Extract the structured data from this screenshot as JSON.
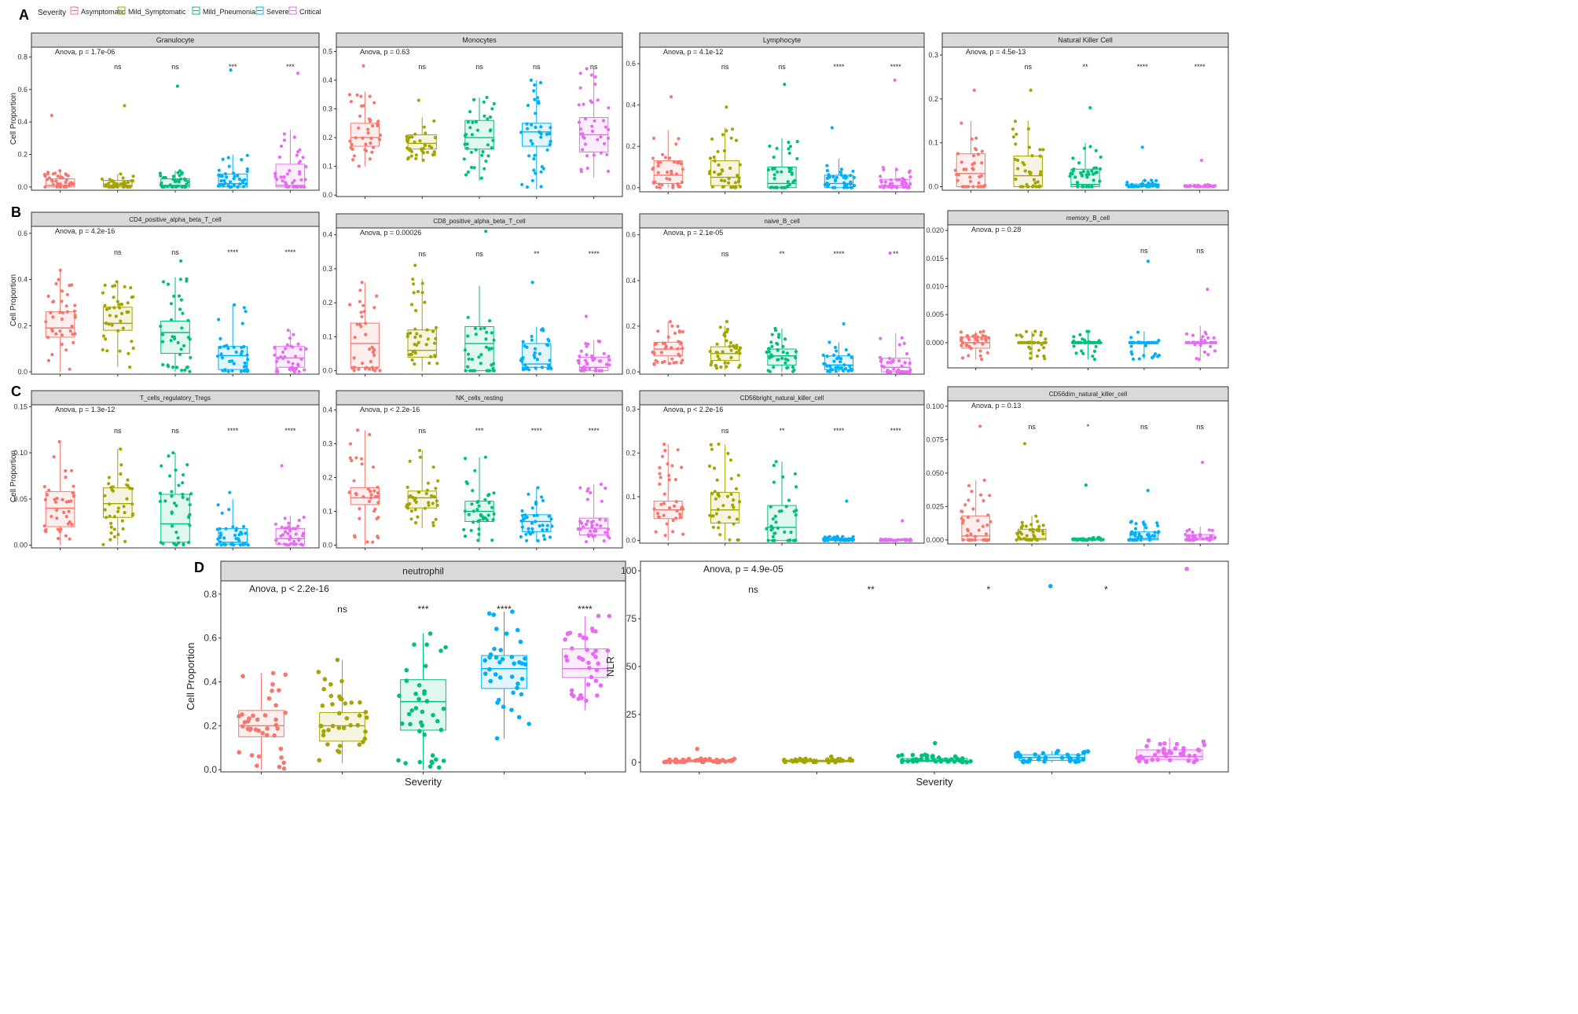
{
  "legend": {
    "title": "Severity",
    "items": [
      {
        "label": "Asymptomatic",
        "color": "#F8766D"
      },
      {
        "label": "Mild_Symptomatic",
        "color": "#A3A500"
      },
      {
        "label": "Mild_Pneumonia",
        "color": "#00BF7D"
      },
      {
        "label": "Severe",
        "color": "#00B0F6"
      },
      {
        "label": "Critical",
        "color": "#E76BF3"
      }
    ]
  },
  "panel_letters": [
    "A",
    "B",
    "C",
    "D"
  ],
  "xlabel": "Severity",
  "chart_data": [
    {
      "type": "box",
      "panel": "A",
      "strip": "Granulocyte",
      "ylabel": "Cell Proportion",
      "ylim": [
        -0.02,
        0.86
      ],
      "yticks": [
        0.0,
        0.2,
        0.4,
        0.6,
        0.8
      ],
      "tickfmt": "1",
      "anova": "Anova, p = 1.7e-06",
      "sig": [
        "",
        "ns",
        "ns",
        "***",
        "***"
      ],
      "boxes": [
        {
          "q1": 0.0,
          "med": 0.01,
          "q3": 0.05,
          "lo": 0.0,
          "hi": 0.1,
          "max": 0.44
        },
        {
          "q1": 0.0,
          "med": 0.01,
          "q3": 0.04,
          "lo": 0.0,
          "hi": 0.08,
          "max": 0.5
        },
        {
          "q1": 0.0,
          "med": 0.01,
          "q3": 0.05,
          "lo": 0.0,
          "hi": 0.1,
          "max": 0.62
        },
        {
          "q1": 0.0,
          "med": 0.02,
          "q3": 0.08,
          "lo": 0.0,
          "hi": 0.2,
          "max": 0.72
        },
        {
          "q1": 0.0,
          "med": 0.01,
          "q3": 0.14,
          "lo": 0.0,
          "hi": 0.35,
          "max": 0.7
        }
      ]
    },
    {
      "type": "box",
      "panel": "A",
      "strip": "Monocytes",
      "ylabel": "",
      "ylim": [
        -0.005,
        0.515
      ],
      "yticks": [
        0.0,
        0.1,
        0.2,
        0.3,
        0.4,
        0.5
      ],
      "tickfmt": "1",
      "anova": "Anova, p = 0.63",
      "sig": [
        "",
        "ns",
        "ns",
        "ns",
        "ns"
      ],
      "boxes": [
        {
          "q1": 0.17,
          "med": 0.2,
          "q3": 0.25,
          "lo": 0.1,
          "hi": 0.36,
          "max": 0.45
        },
        {
          "q1": 0.16,
          "med": 0.18,
          "q3": 0.21,
          "lo": 0.12,
          "hi": 0.27,
          "max": 0.33
        },
        {
          "q1": 0.16,
          "med": 0.2,
          "q3": 0.26,
          "lo": 0.05,
          "hi": 0.34,
          "max": 0.34
        },
        {
          "q1": 0.17,
          "med": 0.22,
          "q3": 0.25,
          "lo": 0.02,
          "hi": 0.4,
          "max": 0.4
        },
        {
          "q1": 0.15,
          "med": 0.21,
          "q3": 0.27,
          "lo": 0.06,
          "hi": 0.44,
          "max": 0.44
        }
      ]
    },
    {
      "type": "box",
      "panel": "A",
      "strip": "Lymphocyte",
      "ylabel": "",
      "ylim": [
        -0.02,
        0.68
      ],
      "yticks": [
        0.0,
        0.2,
        0.4,
        0.6
      ],
      "tickfmt": "1",
      "anova": "Anova, p = 4.1e-12",
      "sig": [
        "",
        "ns",
        "ns",
        "****",
        "****"
      ],
      "boxes": [
        {
          "q1": 0.02,
          "med": 0.06,
          "q3": 0.13,
          "lo": 0.0,
          "hi": 0.28,
          "max": 0.44
        },
        {
          "q1": 0.01,
          "med": 0.05,
          "q3": 0.13,
          "lo": 0.0,
          "hi": 0.29,
          "max": 0.39
        },
        {
          "q1": 0.0,
          "med": 0.02,
          "q3": 0.1,
          "lo": 0.0,
          "hi": 0.24,
          "max": 0.5
        },
        {
          "q1": 0.0,
          "med": 0.02,
          "q3": 0.06,
          "lo": 0.0,
          "hi": 0.14,
          "max": 0.29
        },
        {
          "q1": 0.0,
          "med": 0.01,
          "q3": 0.04,
          "lo": 0.0,
          "hi": 0.1,
          "max": 0.52
        }
      ]
    },
    {
      "type": "box",
      "panel": "A",
      "strip": "Natural Killer Cell",
      "ylabel": "",
      "ylim": [
        -0.008,
        0.318
      ],
      "yticks": [
        0.0,
        0.1,
        0.2,
        0.3
      ],
      "tickfmt": "1",
      "anova": "Anova, p = 4.5e-13",
      "sig": [
        "",
        "ns",
        "**",
        "****",
        "****"
      ],
      "boxes": [
        {
          "q1": 0.0,
          "med": 0.03,
          "q3": 0.075,
          "lo": 0.0,
          "hi": 0.15,
          "max": 0.22
        },
        {
          "q1": 0.0,
          "med": 0.025,
          "q3": 0.07,
          "lo": 0.0,
          "hi": 0.15,
          "max": 0.22
        },
        {
          "q1": 0.0,
          "med": 0.005,
          "q3": 0.04,
          "lo": 0.0,
          "hi": 0.1,
          "max": 0.18
        },
        {
          "q1": 0.0,
          "med": 0.002,
          "q3": 0.006,
          "lo": 0.0,
          "hi": 0.015,
          "max": 0.09
        },
        {
          "q1": 0.0,
          "med": 0.001,
          "q3": 0.002,
          "lo": 0.0,
          "hi": 0.005,
          "max": 0.06
        }
      ]
    },
    {
      "type": "box",
      "panel": "B",
      "strip": "CD4_positive_alpha_beta_T_cell",
      "ylabel": "Cell Proportion",
      "ylim": [
        -0.01,
        0.63
      ],
      "yticks": [
        0.0,
        0.2,
        0.4,
        0.6
      ],
      "tickfmt": "1",
      "anova": "Anova, p = 4.2e-16",
      "sig": [
        "",
        "ns",
        "ns",
        "****",
        "****"
      ],
      "boxes": [
        {
          "q1": 0.15,
          "med": 0.19,
          "q3": 0.26,
          "lo": 0.0,
          "hi": 0.44,
          "max": 0.44
        },
        {
          "q1": 0.18,
          "med": 0.21,
          "q3": 0.28,
          "lo": 0.02,
          "hi": 0.39,
          "max": 0.39
        },
        {
          "q1": 0.08,
          "med": 0.17,
          "q3": 0.22,
          "lo": 0.0,
          "hi": 0.41,
          "max": 0.48
        },
        {
          "q1": 0.01,
          "med": 0.07,
          "q3": 0.11,
          "lo": 0.0,
          "hi": 0.29,
          "max": 0.29
        },
        {
          "q1": 0.02,
          "med": 0.06,
          "q3": 0.11,
          "lo": 0.0,
          "hi": 0.18,
          "max": 0.18
        }
      ]
    },
    {
      "type": "box",
      "panel": "B",
      "strip": "CD8_positive_alpha_beta_T_cell",
      "ylabel": "",
      "ylim": [
        -0.01,
        0.42
      ],
      "yticks": [
        0.0,
        0.1,
        0.2,
        0.3,
        0.4
      ],
      "tickfmt": "1",
      "anova": "Anova, p = 0.00026",
      "sig": [
        "",
        "ns",
        "ns",
        "**",
        "****"
      ],
      "boxes": [
        {
          "q1": 0.01,
          "med": 0.08,
          "q3": 0.14,
          "lo": 0.0,
          "hi": 0.26,
          "max": 0.26
        },
        {
          "q1": 0.04,
          "med": 0.06,
          "q3": 0.12,
          "lo": 0.0,
          "hi": 0.27,
          "max": 0.31
        },
        {
          "q1": 0.0,
          "med": 0.08,
          "q3": 0.13,
          "lo": 0.0,
          "hi": 0.25,
          "max": 0.41
        },
        {
          "q1": 0.01,
          "med": 0.02,
          "q3": 0.08,
          "lo": 0.0,
          "hi": 0.13,
          "max": 0.26
        },
        {
          "q1": 0.0,
          "med": 0.01,
          "q3": 0.04,
          "lo": 0.0,
          "hi": 0.09,
          "max": 0.16
        }
      ]
    },
    {
      "type": "box",
      "panel": "B",
      "strip": "naive_B_cell",
      "ylabel": "",
      "ylim": [
        -0.01,
        0.63
      ],
      "yticks": [
        0.0,
        0.2,
        0.4,
        0.6
      ],
      "tickfmt": "1",
      "anova": "Anova, p = 2.1e-05",
      "sig": [
        "",
        "ns",
        "**",
        "****",
        "**"
      ],
      "boxes": [
        {
          "q1": 0.07,
          "med": 0.1,
          "q3": 0.13,
          "lo": 0.03,
          "hi": 0.22,
          "max": 0.22
        },
        {
          "q1": 0.05,
          "med": 0.08,
          "q3": 0.11,
          "lo": 0.01,
          "hi": 0.2,
          "max": 0.22
        },
        {
          "q1": 0.03,
          "med": 0.07,
          "q3": 0.1,
          "lo": 0.0,
          "hi": 0.19,
          "max": 0.19
        },
        {
          "q1": 0.01,
          "med": 0.03,
          "q3": 0.07,
          "lo": 0.0,
          "hi": 0.13,
          "max": 0.21
        },
        {
          "q1": 0.0,
          "med": 0.02,
          "q3": 0.06,
          "lo": 0.0,
          "hi": 0.17,
          "max": 0.52
        }
      ]
    },
    {
      "type": "box",
      "panel": "B",
      "strip": "memory_B_cell",
      "ylabel": "",
      "ylim": [
        -0.0045,
        0.021
      ],
      "yticks": [
        0.0,
        0.005,
        0.01,
        0.015,
        0.02
      ],
      "tickfmt": "3",
      "anova": "Anova, p = 0.28",
      "sig": [
        "",
        "",
        "",
        "ns",
        "ns"
      ],
      "boxes": [
        {
          "q1": -0.001,
          "med": 0.0,
          "q3": 0.001,
          "lo": -0.003,
          "hi": 0.002,
          "max": 0.002
        },
        {
          "q1": 0.0,
          "med": 0.0,
          "q3": 0.0,
          "lo": -0.003,
          "hi": 0.002,
          "max": 0.002
        },
        {
          "q1": 0.0,
          "med": 0.0,
          "q3": 0.0,
          "lo": -0.003,
          "hi": 0.002,
          "max": 0.002
        },
        {
          "q1": 0.0,
          "med": 0.0,
          "q3": 0.0,
          "lo": -0.003,
          "hi": 0.002,
          "max": 0.0145
        },
        {
          "q1": 0.0,
          "med": 0.0,
          "q3": 0.0,
          "lo": -0.003,
          "hi": 0.003,
          "max": 0.0095
        }
      ]
    },
    {
      "type": "box",
      "panel": "C",
      "strip": "T_cells_regulatory_Tregs",
      "ylabel": "Cell Proportion",
      "ylim": [
        -0.003,
        0.152
      ],
      "yticks": [
        0.0,
        0.05,
        0.1,
        0.15
      ],
      "tickfmt": "2",
      "anova": "Anova, p = 1.3e-12",
      "sig": [
        "",
        "ns",
        "ns",
        "****",
        "****"
      ],
      "boxes": [
        {
          "q1": 0.02,
          "med": 0.04,
          "q3": 0.058,
          "lo": 0.0,
          "hi": 0.112,
          "max": 0.112
        },
        {
          "q1": 0.03,
          "med": 0.045,
          "q3": 0.062,
          "lo": 0.0,
          "hi": 0.104,
          "max": 0.104
        },
        {
          "q1": 0.003,
          "med": 0.023,
          "q3": 0.055,
          "lo": 0.0,
          "hi": 0.1,
          "max": 0.1
        },
        {
          "q1": 0.001,
          "med": 0.003,
          "q3": 0.018,
          "lo": 0.0,
          "hi": 0.05,
          "max": 0.057
        },
        {
          "q1": 0.001,
          "med": 0.007,
          "q3": 0.018,
          "lo": 0.0,
          "hi": 0.032,
          "max": 0.086
        }
      ]
    },
    {
      "type": "box",
      "panel": "C",
      "strip": "NK_cells_resting",
      "ylabel": "",
      "ylim": [
        -0.008,
        0.415
      ],
      "yticks": [
        0.0,
        0.1,
        0.2,
        0.3,
        0.4
      ],
      "tickfmt": "1",
      "anova": "Anova, p < 2.2e-16",
      "sig": [
        "",
        "ns",
        "***",
        "****",
        "****"
      ],
      "boxes": [
        {
          "q1": 0.12,
          "med": 0.14,
          "q3": 0.17,
          "lo": 0.0,
          "hi": 0.34,
          "max": 0.34
        },
        {
          "q1": 0.11,
          "med": 0.14,
          "q3": 0.16,
          "lo": 0.05,
          "hi": 0.28,
          "max": 0.28
        },
        {
          "q1": 0.07,
          "med": 0.1,
          "q3": 0.13,
          "lo": 0.01,
          "hi": 0.26,
          "max": 0.26
        },
        {
          "q1": 0.04,
          "med": 0.07,
          "q3": 0.09,
          "lo": 0.01,
          "hi": 0.17,
          "max": 0.17
        },
        {
          "q1": 0.03,
          "med": 0.05,
          "q3": 0.08,
          "lo": 0.01,
          "hi": 0.18,
          "max": 0.18
        }
      ]
    },
    {
      "type": "box",
      "panel": "C",
      "strip": "CD56bright_natural_killer_cell",
      "ylabel": "",
      "ylim": [
        -0.006,
        0.31
      ],
      "yticks": [
        0.0,
        0.1,
        0.2,
        0.3
      ],
      "tickfmt": "1",
      "anova": "Anova, p < 2.2e-16",
      "sig": [
        "",
        "ns",
        "**",
        "****",
        "****"
      ],
      "boxes": [
        {
          "q1": 0.05,
          "med": 0.07,
          "q3": 0.09,
          "lo": 0.0,
          "hi": 0.22,
          "max": 0.22
        },
        {
          "q1": 0.04,
          "med": 0.07,
          "q3": 0.11,
          "lo": 0.0,
          "hi": 0.22,
          "max": 0.22
        },
        {
          "q1": 0.0,
          "med": 0.03,
          "q3": 0.08,
          "lo": 0.0,
          "hi": 0.18,
          "max": 0.18
        },
        {
          "q1": 0.0,
          "med": 0.002,
          "q3": 0.004,
          "lo": 0.0,
          "hi": 0.01,
          "max": 0.09
        },
        {
          "q1": 0.0,
          "med": 0.001,
          "q3": 0.002,
          "lo": 0.0,
          "hi": 0.004,
          "max": 0.045
        }
      ]
    },
    {
      "type": "box",
      "panel": "C",
      "strip": "CD56dim_natural_killer_cell",
      "ylabel": "",
      "ylim": [
        -0.003,
        0.104
      ],
      "yticks": [
        0.0,
        0.025,
        0.05,
        0.075,
        0.1
      ],
      "tickfmt": "3",
      "anova": "Anova, p = 0.13",
      "sig": [
        "",
        "ns",
        "*",
        "ns",
        "ns"
      ],
      "boxes": [
        {
          "q1": 0.0,
          "med": 0.003,
          "q3": 0.018,
          "lo": 0.0,
          "hi": 0.045,
          "max": 0.085
        },
        {
          "q1": 0.0,
          "med": 0.001,
          "q3": 0.008,
          "lo": 0.0,
          "hi": 0.018,
          "max": 0.072
        },
        {
          "q1": 0.0,
          "med": 0.0,
          "q3": 0.001,
          "lo": 0.0,
          "hi": 0.002,
          "max": 0.041
        },
        {
          "q1": 0.0,
          "med": 0.001,
          "q3": 0.006,
          "lo": 0.0,
          "hi": 0.015,
          "max": 0.037
        },
        {
          "q1": 0.0,
          "med": 0.001,
          "q3": 0.004,
          "lo": 0.0,
          "hi": 0.01,
          "max": 0.058
        }
      ]
    },
    {
      "type": "box",
      "panel": "D",
      "strip": "neutrophil",
      "ylabel": "Cell Proportion",
      "xlabel": "Severity",
      "ylim": [
        -0.01,
        0.86
      ],
      "yticks": [
        0.0,
        0.2,
        0.4,
        0.6,
        0.8
      ],
      "tickfmt": "1",
      "anova": "Anova, p < 2.2e-16",
      "sig": [
        "",
        "ns",
        "***",
        "****",
        "****"
      ],
      "boxes": [
        {
          "q1": 0.15,
          "med": 0.2,
          "q3": 0.27,
          "lo": 0.0,
          "hi": 0.44,
          "max": 0.44
        },
        {
          "q1": 0.13,
          "med": 0.2,
          "q3": 0.26,
          "lo": 0.03,
          "hi": 0.5,
          "max": 0.5
        },
        {
          "q1": 0.18,
          "med": 0.31,
          "q3": 0.41,
          "lo": 0.0,
          "hi": 0.62,
          "max": 0.62
        },
        {
          "q1": 0.37,
          "med": 0.46,
          "q3": 0.52,
          "lo": 0.14,
          "hi": 0.72,
          "max": 0.72
        },
        {
          "q1": 0.42,
          "med": 0.46,
          "q3": 0.55,
          "lo": 0.27,
          "hi": 0.7,
          "max": 0.7
        }
      ]
    },
    {
      "type": "box",
      "panel": "D",
      "strip": "",
      "ylabel": "NLR",
      "xlabel": "Severity",
      "ylim": [
        -5,
        105
      ],
      "yticks": [
        0,
        25,
        50,
        75,
        100
      ],
      "tickfmt": "0",
      "anova": "Anova, p = 4.9e-05",
      "sig": [
        "ns",
        "**",
        "*",
        "*",
        ""
      ],
      "boxes": [
        {
          "q1": 0.3,
          "med": 0.7,
          "q3": 1.2,
          "lo": 0.0,
          "hi": 2.0,
          "max": 7.0
        },
        {
          "q1": 0.3,
          "med": 0.7,
          "q3": 1.1,
          "lo": 0.0,
          "hi": 2.0,
          "max": 3.0
        },
        {
          "q1": 0.5,
          "med": 1.0,
          "q3": 2.0,
          "lo": 0.0,
          "hi": 4.0,
          "max": 10.0
        },
        {
          "q1": 1.0,
          "med": 2.5,
          "q3": 4.0,
          "lo": 0.0,
          "hi": 6.0,
          "max": 92.0
        },
        {
          "q1": 1.5,
          "med": 3.0,
          "q3": 6.5,
          "lo": 0.0,
          "hi": 13.0,
          "max": 101.0
        }
      ]
    }
  ]
}
